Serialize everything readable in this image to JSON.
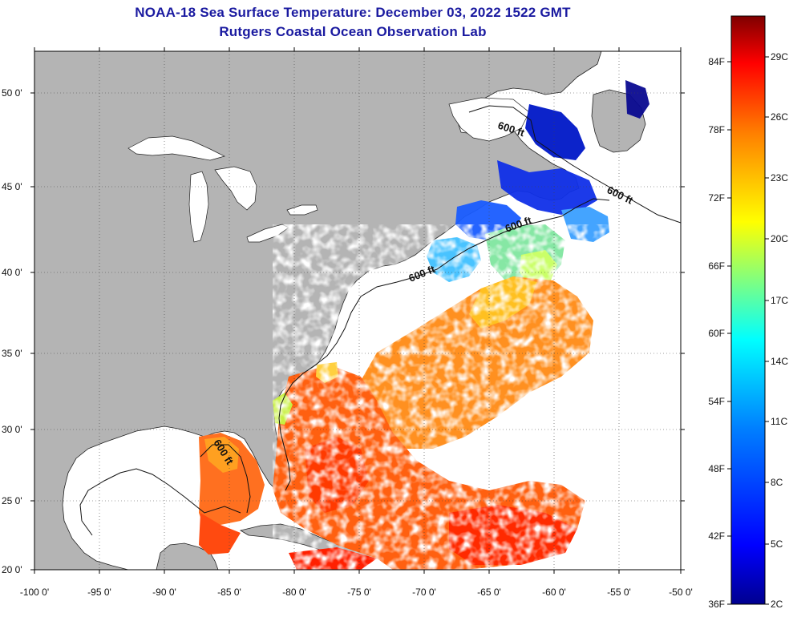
{
  "title": {
    "line1": "NOAA-18 Sea Surface Temperature:  December 03, 2022 1522 GMT",
    "line2": "Rutgers Coastal Ocean Observation Lab"
  },
  "map": {
    "lon_labels": [
      "-100 0'",
      "-95 0'",
      "-90 0'",
      "-85 0'",
      "-80 0'",
      "-75 0'",
      "-70 0'",
      "-65 0'",
      "-60 0'",
      "-55 0'",
      "-50 0'"
    ],
    "lat_labels": [
      "50 0'",
      "45 0'",
      "40 0'",
      "35 0'",
      "30 0'",
      "25 0'",
      "20 0'"
    ],
    "contour_label": "600 ft",
    "land_color": "#b4b4b4",
    "ocean_color": "#ffffff"
  },
  "colorbar": {
    "fahrenheit_labels": [
      "84F",
      "78F",
      "72F",
      "66F",
      "60F",
      "54F",
      "48F",
      "42F",
      "36F"
    ],
    "celsius_labels": [
      "29C",
      "26C",
      "23C",
      "20C",
      "17C",
      "14C",
      "11C",
      "8C",
      "5C",
      "2C"
    ],
    "colors": [
      "#7f0000",
      "#ff0000",
      "#ff8000",
      "#ffff00",
      "#80ff80",
      "#00ffff",
      "#0080ff",
      "#0000ff",
      "#00008f"
    ]
  }
}
